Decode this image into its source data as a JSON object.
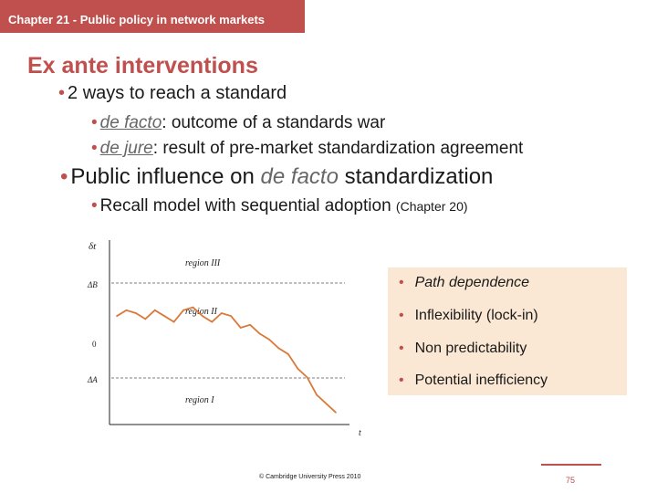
{
  "header": {
    "chapter": "Chapter 21 - Public policy in network markets"
  },
  "title": "Ex ante interventions",
  "bullets": {
    "b1": "2 ways to reach a standard",
    "b1_1_term": "de facto",
    "b1_1_rest": ": outcome of a standards war",
    "b1_2_term": "de jure",
    "b1_2_rest": ": result of pre-market standardization agreement",
    "b2_pre": "Public influence on ",
    "b2_term": "de facto",
    "b2_post": " standardization",
    "b2_1": "Recall model with sequential adoption",
    "b2_1_small": "(Chapter 20)"
  },
  "chart": {
    "ylabel": "δt",
    "xlabel": "t",
    "ytick_upper": "ΔB",
    "ytick_zero": "0",
    "ytick_lower": "ΔA",
    "region3": "region III",
    "region2": "region II",
    "region1": "region I"
  },
  "chart_data": {
    "type": "line",
    "title": "",
    "xlabel": "t",
    "ylabel": "δt",
    "y_reference_levels": [
      "ΔB",
      "0",
      "ΔA"
    ],
    "regions": [
      "region III",
      "region II",
      "region I"
    ],
    "series": [
      {
        "values": [
          0.45,
          0.55,
          0.5,
          0.4,
          0.55,
          0.45,
          0.35,
          0.55,
          0.6,
          0.45,
          0.35,
          0.5,
          0.45,
          0.25,
          0.3,
          0.15,
          0.05,
          -0.1,
          -0.2,
          -0.45,
          -0.6,
          -0.9,
          -1.05,
          -1.2
        ]
      }
    ]
  },
  "box": {
    "items": [
      "Path dependence",
      "Inflexibility (lock-in)",
      "Non predictability",
      "Potential inefficiency"
    ]
  },
  "footer": {
    "copyright": "© Cambridge University Press 2010",
    "page": "75"
  }
}
